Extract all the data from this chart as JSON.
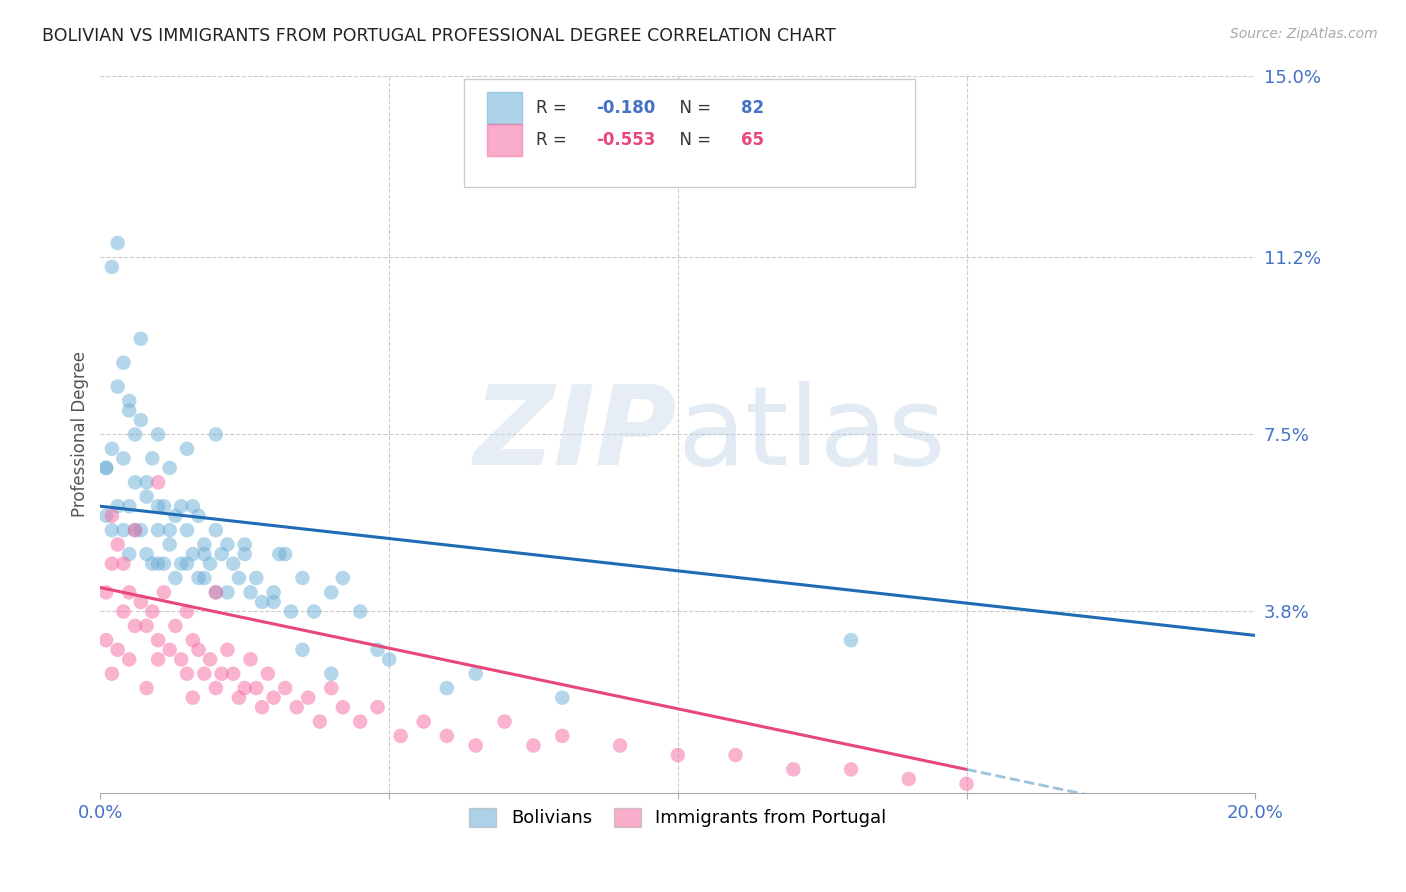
{
  "title": "BOLIVIAN VS IMMIGRANTS FROM PORTUGAL PROFESSIONAL DEGREE CORRELATION CHART",
  "source": "Source: ZipAtlas.com",
  "ylabel": "Professional Degree",
  "xlim": [
    0.0,
    0.2
  ],
  "ylim": [
    0.0,
    0.15
  ],
  "blue_R": -0.18,
  "blue_N": 82,
  "pink_R": -0.553,
  "pink_N": 65,
  "blue_color": "#6baed6",
  "pink_color": "#f768a1",
  "blue_line_color": "#1f6cb5",
  "pink_line_color": "#e8477a",
  "dash_line_color": "#7bafd4",
  "legend_label_blue": "Bolivians",
  "legend_label_pink": "Immigrants from Portugal",
  "blue_scatter_x": [
    0.001,
    0.001,
    0.002,
    0.002,
    0.003,
    0.003,
    0.004,
    0.004,
    0.005,
    0.005,
    0.005,
    0.006,
    0.006,
    0.007,
    0.007,
    0.008,
    0.008,
    0.009,
    0.009,
    0.01,
    0.01,
    0.01,
    0.011,
    0.011,
    0.012,
    0.012,
    0.013,
    0.013,
    0.014,
    0.014,
    0.015,
    0.015,
    0.016,
    0.016,
    0.017,
    0.017,
    0.018,
    0.018,
    0.019,
    0.02,
    0.02,
    0.021,
    0.022,
    0.022,
    0.023,
    0.024,
    0.025,
    0.026,
    0.027,
    0.028,
    0.03,
    0.031,
    0.032,
    0.033,
    0.035,
    0.037,
    0.04,
    0.042,
    0.045,
    0.048,
    0.001,
    0.002,
    0.003,
    0.004,
    0.005,
    0.006,
    0.007,
    0.008,
    0.01,
    0.012,
    0.015,
    0.018,
    0.02,
    0.025,
    0.03,
    0.035,
    0.04,
    0.05,
    0.06,
    0.065,
    0.08,
    0.13
  ],
  "blue_scatter_y": [
    0.068,
    0.058,
    0.11,
    0.055,
    0.115,
    0.06,
    0.09,
    0.055,
    0.08,
    0.06,
    0.05,
    0.075,
    0.055,
    0.095,
    0.055,
    0.065,
    0.05,
    0.07,
    0.048,
    0.06,
    0.055,
    0.048,
    0.06,
    0.048,
    0.055,
    0.052,
    0.058,
    0.045,
    0.06,
    0.048,
    0.055,
    0.048,
    0.06,
    0.05,
    0.058,
    0.045,
    0.05,
    0.045,
    0.048,
    0.055,
    0.042,
    0.05,
    0.052,
    0.042,
    0.048,
    0.045,
    0.05,
    0.042,
    0.045,
    0.04,
    0.042,
    0.05,
    0.05,
    0.038,
    0.045,
    0.038,
    0.042,
    0.045,
    0.038,
    0.03,
    0.068,
    0.072,
    0.085,
    0.07,
    0.082,
    0.065,
    0.078,
    0.062,
    0.075,
    0.068,
    0.072,
    0.052,
    0.075,
    0.052,
    0.04,
    0.03,
    0.025,
    0.028,
    0.022,
    0.025,
    0.02,
    0.032
  ],
  "pink_scatter_x": [
    0.001,
    0.001,
    0.002,
    0.002,
    0.003,
    0.003,
    0.004,
    0.005,
    0.005,
    0.006,
    0.007,
    0.008,
    0.008,
    0.009,
    0.01,
    0.01,
    0.011,
    0.012,
    0.013,
    0.014,
    0.015,
    0.015,
    0.016,
    0.016,
    0.017,
    0.018,
    0.019,
    0.02,
    0.021,
    0.022,
    0.023,
    0.024,
    0.025,
    0.026,
    0.027,
    0.028,
    0.029,
    0.03,
    0.032,
    0.034,
    0.036,
    0.038,
    0.04,
    0.042,
    0.045,
    0.048,
    0.052,
    0.056,
    0.06,
    0.065,
    0.07,
    0.075,
    0.08,
    0.09,
    0.1,
    0.11,
    0.12,
    0.13,
    0.14,
    0.15,
    0.002,
    0.004,
    0.006,
    0.01,
    0.02
  ],
  "pink_scatter_y": [
    0.042,
    0.032,
    0.048,
    0.025,
    0.052,
    0.03,
    0.038,
    0.042,
    0.028,
    0.035,
    0.04,
    0.035,
    0.022,
    0.038,
    0.032,
    0.028,
    0.042,
    0.03,
    0.035,
    0.028,
    0.038,
    0.025,
    0.032,
    0.02,
    0.03,
    0.025,
    0.028,
    0.022,
    0.025,
    0.03,
    0.025,
    0.02,
    0.022,
    0.028,
    0.022,
    0.018,
    0.025,
    0.02,
    0.022,
    0.018,
    0.02,
    0.015,
    0.022,
    0.018,
    0.015,
    0.018,
    0.012,
    0.015,
    0.012,
    0.01,
    0.015,
    0.01,
    0.012,
    0.01,
    0.008,
    0.008,
    0.005,
    0.005,
    0.003,
    0.002,
    0.058,
    0.048,
    0.055,
    0.065,
    0.042
  ]
}
